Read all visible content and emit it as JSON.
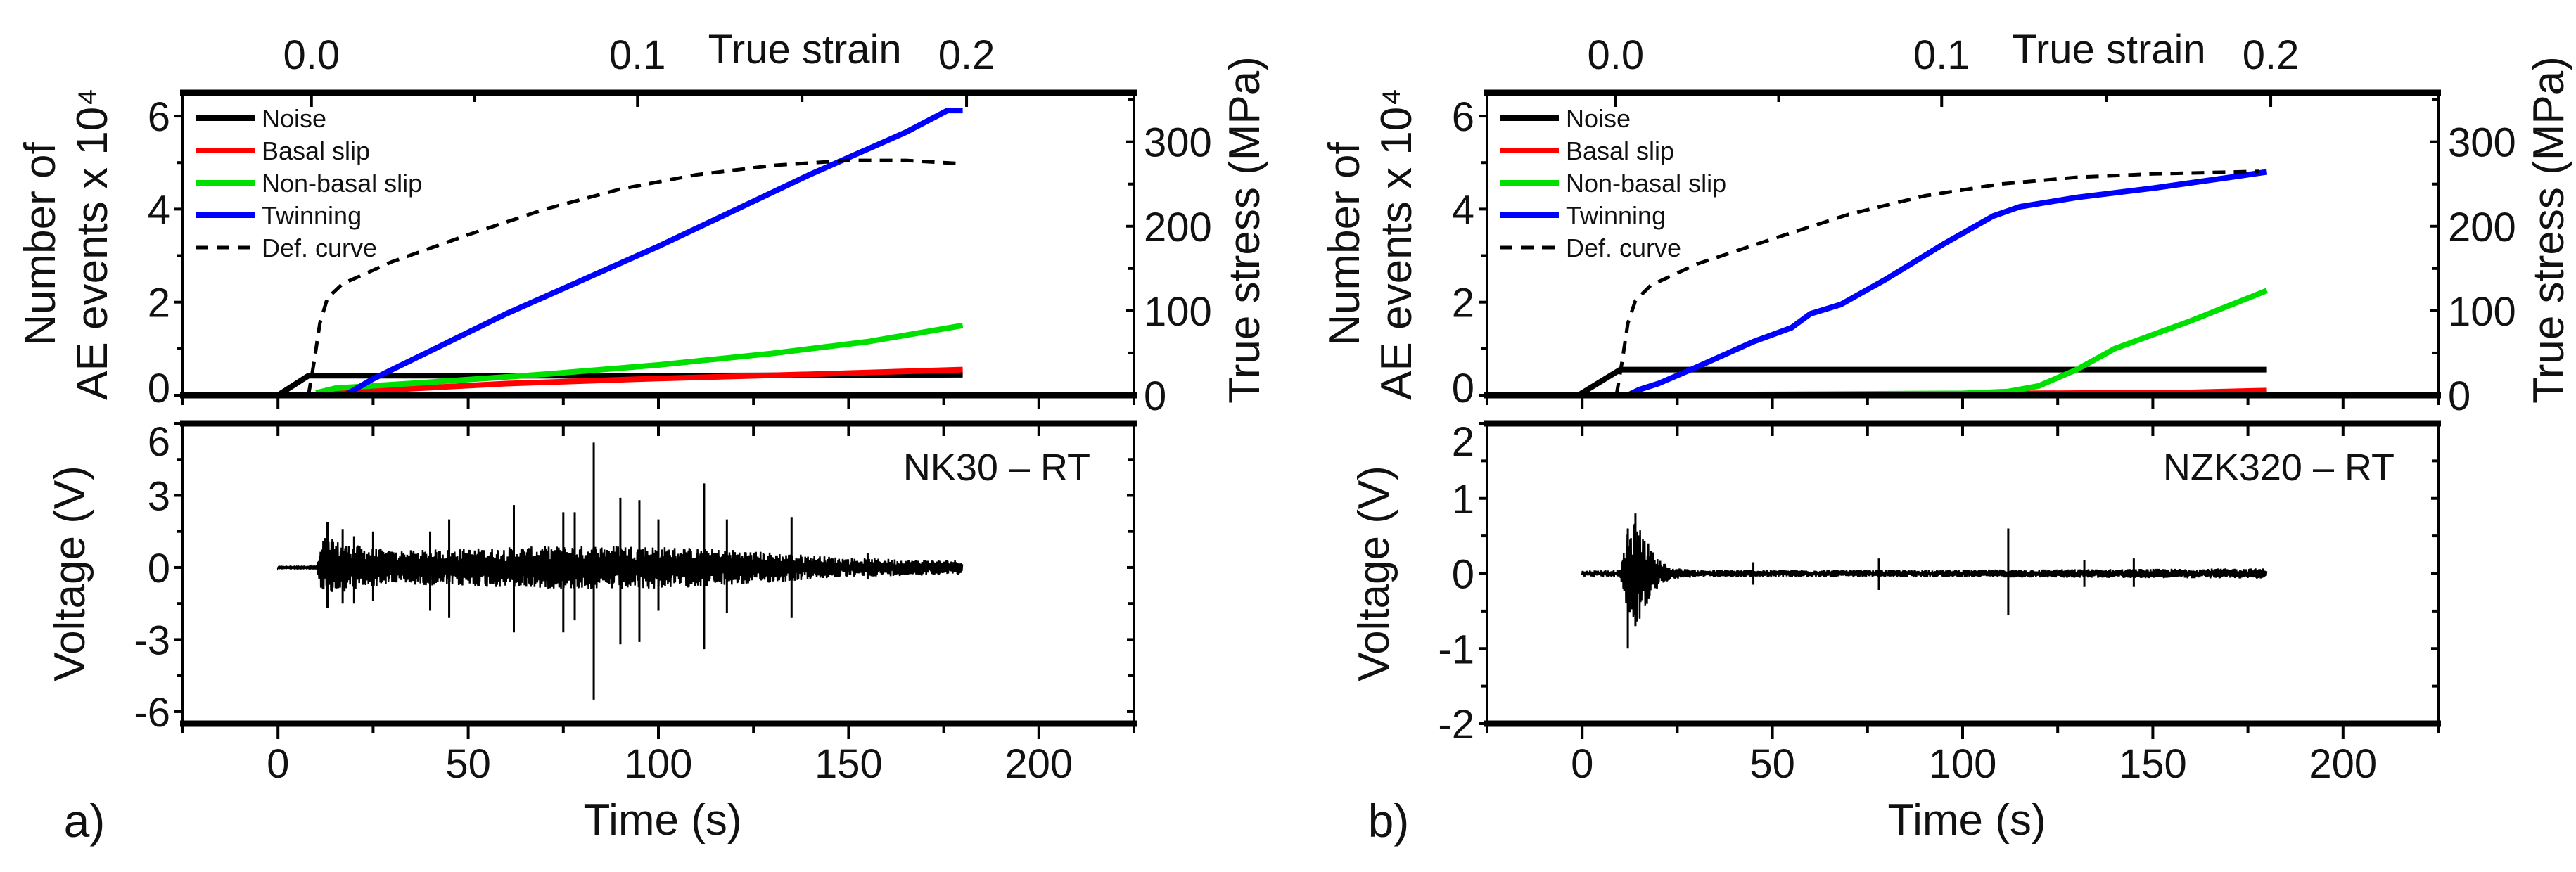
{
  "chart_data": [
    {
      "panel_label": "a)",
      "sample_label": "NK30 – RT",
      "top": {
        "type": "line",
        "xlabel_top": "True strain",
        "top_ticks": [
          "0.0",
          "0.1",
          "0.2"
        ],
        "top_tick_times": [
          8.8,
          94.5,
          181
        ],
        "ylabel_lines": [
          "Number of",
          "AE events x 10⁴"
        ],
        "y2label": "True stress (MPa)",
        "xlim": [
          -25,
          225
        ],
        "ylim": [
          0,
          6.5
        ],
        "y2lim": [
          0,
          358
        ],
        "yticks": [
          "0",
          "2",
          "4",
          "6"
        ],
        "y2ticks": [
          "0",
          "100",
          "200",
          "300"
        ],
        "legend": [
          "Noise",
          "Basal slip",
          "Non-basal slip",
          "Twinning",
          "Def. curve"
        ],
        "series": [
          {
            "name": "Noise",
            "color": "#000000",
            "axis": "left",
            "points": [
              [
                -25,
                0
              ],
              [
                0,
                0
              ],
              [
                8,
                0.42
              ],
              [
                100,
                0.42
              ],
              [
                180,
                0.44
              ]
            ]
          },
          {
            "name": "Basal slip",
            "color": "#ff0000",
            "axis": "left",
            "points": [
              [
                10,
                0
              ],
              [
                30,
                0.12
              ],
              [
                60,
                0.25
              ],
              [
                100,
                0.36
              ],
              [
                140,
                0.45
              ],
              [
                180,
                0.55
              ]
            ]
          },
          {
            "name": "Non-basal slip",
            "color": "#00e000",
            "axis": "left",
            "points": [
              [
                10,
                0.05
              ],
              [
                15,
                0.15
              ],
              [
                40,
                0.28
              ],
              [
                70,
                0.45
              ],
              [
                100,
                0.65
              ],
              [
                130,
                0.9
              ],
              [
                155,
                1.15
              ],
              [
                180,
                1.5
              ]
            ]
          },
          {
            "name": "Twinning",
            "color": "#0000ff",
            "axis": "left",
            "points": [
              [
                12,
                0
              ],
              [
                18,
                0.02
              ],
              [
                25,
                0.35
              ],
              [
                60,
                1.75
              ],
              [
                100,
                3.2
              ],
              [
                140,
                4.75
              ],
              [
                165,
                5.65
              ],
              [
                176,
                6.12
              ],
              [
                180,
                6.12
              ]
            ]
          },
          {
            "name": "Def. curve",
            "color": "#000000",
            "dashed": true,
            "axis": "right",
            "points": [
              [
                8,
                0
              ],
              [
                9.5,
                40
              ],
              [
                11,
                85
              ],
              [
                13,
                115
              ],
              [
                17,
                132
              ],
              [
                30,
                158
              ],
              [
                50,
                190
              ],
              [
                70,
                220
              ],
              [
                90,
                244
              ],
              [
                110,
                261
              ],
              [
                130,
                272
              ],
              [
                150,
                278
              ],
              [
                165,
                278
              ],
              [
                180,
                274
              ]
            ]
          }
        ]
      },
      "bottom": {
        "type": "line",
        "xlabel": "Time (s)",
        "ylabel": "Voltage (V)",
        "xlim": [
          -25,
          225
        ],
        "ylim": [
          -6.5,
          6
        ],
        "xticks": [
          "0",
          "50",
          "100",
          "150",
          "200"
        ],
        "yticks": [
          "-6",
          "-3",
          "0",
          "3",
          "6"
        ],
        "envelope": [
          [
            0,
            0.02
          ],
          [
            10,
            0.03
          ],
          [
            12,
            1.3
          ],
          [
            18,
            1.0
          ],
          [
            30,
            0.7
          ],
          [
            60,
            0.85
          ],
          [
            90,
            0.95
          ],
          [
            120,
            0.75
          ],
          [
            150,
            0.4
          ],
          [
            180,
            0.3
          ]
        ],
        "spikes": [
          [
            13,
            1.9,
            -1.7
          ],
          [
            17,
            1.6,
            -1.5
          ],
          [
            20,
            1.3,
            -1.5
          ],
          [
            25,
            1.5,
            -1.4
          ],
          [
            40,
            1.5,
            -1.8
          ],
          [
            45,
            2.0,
            -2.1
          ],
          [
            62,
            2.6,
            -2.7
          ],
          [
            75,
            2.3,
            -2.7
          ],
          [
            78,
            2.3,
            -2.2
          ],
          [
            83,
            5.2,
            -5.5
          ],
          [
            90,
            2.9,
            -3.2
          ],
          [
            95,
            2.8,
            -3.1
          ],
          [
            100,
            2.0,
            -1.8
          ],
          [
            112,
            3.5,
            -3.4
          ],
          [
            118,
            2.0,
            -1.9
          ],
          [
            135,
            2.1,
            -2.1
          ],
          [
            155,
            0.6,
            -0.5
          ]
        ]
      }
    },
    {
      "panel_label": "b)",
      "sample_label": "NZK320 – RT",
      "top": {
        "type": "line",
        "xlabel_top": "True strain",
        "top_ticks": [
          "0.0",
          "0.1",
          "0.2"
        ],
        "top_tick_times": [
          8.8,
          94.5,
          181
        ],
        "ylabel_lines": [
          "Number of",
          "AE events x 10⁴"
        ],
        "y2label": "True stress (MPa)",
        "xlim": [
          -25,
          225
        ],
        "ylim": [
          0,
          6.5
        ],
        "y2lim": [
          0,
          358
        ],
        "yticks": [
          "0",
          "2",
          "4",
          "6"
        ],
        "y2ticks": [
          "0",
          "100",
          "200",
          "300"
        ],
        "legend": [
          "Noise",
          "Basal slip",
          "Non-basal slip",
          "Twinning",
          "Def. curve"
        ],
        "series": [
          {
            "name": "Noise",
            "color": "#000000",
            "axis": "left",
            "points": [
              [
                -25,
                0
              ],
              [
                -1,
                0
              ],
              [
                10,
                0.55
              ],
              [
                180,
                0.55
              ]
            ]
          },
          {
            "name": "Basal slip",
            "color": "#ff0000",
            "axis": "left",
            "points": [
              [
                10,
                0
              ],
              [
                100,
                0.03
              ],
              [
                160,
                0.06
              ],
              [
                180,
                0.1
              ]
            ]
          },
          {
            "name": "Non-basal slip",
            "color": "#00e000",
            "axis": "left",
            "points": [
              [
                8,
                0
              ],
              [
                100,
                0.04
              ],
              [
                112,
                0.08
              ],
              [
                120,
                0.2
              ],
              [
                130,
                0.55
              ],
              [
                140,
                1.0
              ],
              [
                160,
                1.6
              ],
              [
                180,
                2.25
              ]
            ]
          },
          {
            "name": "Twinning",
            "color": "#0000ff",
            "axis": "left",
            "points": [
              [
                12,
                0
              ],
              [
                15,
                0.12
              ],
              [
                20,
                0.25
              ],
              [
                30,
                0.6
              ],
              [
                45,
                1.15
              ],
              [
                55,
                1.45
              ],
              [
                60,
                1.75
              ],
              [
                68,
                1.95
              ],
              [
                80,
                2.5
              ],
              [
                95,
                3.25
              ],
              [
                108,
                3.85
              ],
              [
                115,
                4.05
              ],
              [
                130,
                4.25
              ],
              [
                150,
                4.45
              ],
              [
                170,
                4.68
              ],
              [
                180,
                4.8
              ]
            ]
          },
          {
            "name": "Def. curve",
            "color": "#000000",
            "dashed": true,
            "axis": "right",
            "points": [
              [
                9,
                0
              ],
              [
                10.5,
                40
              ],
              [
                12,
                85
              ],
              [
                14,
                112
              ],
              [
                18,
                130
              ],
              [
                30,
                155
              ],
              [
                50,
                185
              ],
              [
                70,
                214
              ],
              [
                90,
                236
              ],
              [
                110,
                250
              ],
              [
                130,
                258
              ],
              [
                150,
                262
              ],
              [
                178,
                265
              ]
            ]
          }
        ]
      },
      "bottom": {
        "type": "line",
        "xlabel": "Time (s)",
        "ylabel": "Voltage (V)",
        "xlim": [
          -25,
          225
        ],
        "ylim": [
          -2,
          2
        ],
        "xticks": [
          "0",
          "50",
          "100",
          "150",
          "200"
        ],
        "yticks": [
          "-2",
          "-1",
          "0",
          "1",
          "2"
        ],
        "envelope": [
          [
            0,
            0.04
          ],
          [
            10,
            0.05
          ],
          [
            12,
            0.55
          ],
          [
            14,
            0.7
          ],
          [
            16,
            0.55
          ],
          [
            19,
            0.25
          ],
          [
            23,
            0.08
          ],
          [
            30,
            0.05
          ],
          [
            100,
            0.05
          ],
          [
            180,
            0.07
          ]
        ],
        "spikes": [
          [
            12,
            0.6,
            -1.0
          ],
          [
            14,
            0.8,
            -0.7
          ],
          [
            45,
            0.15,
            -0.15
          ],
          [
            78,
            0.2,
            -0.22
          ],
          [
            112,
            0.6,
            -0.55
          ],
          [
            132,
            0.18,
            -0.18
          ],
          [
            145,
            0.2,
            -0.18
          ]
        ]
      }
    }
  ]
}
